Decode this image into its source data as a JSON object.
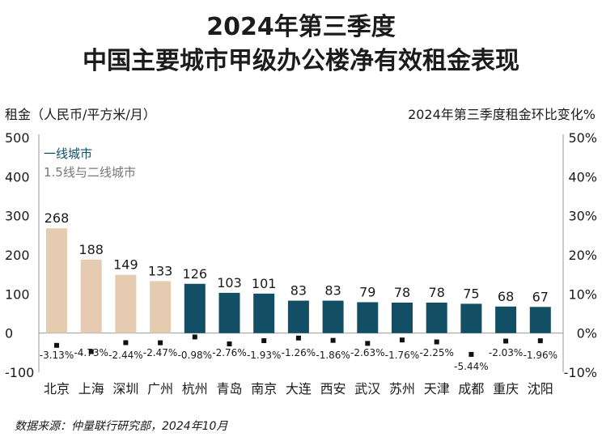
{
  "title_line1": "2024年第三季度",
  "title_line2": "中国主要城市甲级办公楼净有效租金表现",
  "left_axis_title": "租金（人民币/平方米/月）",
  "right_axis_title": "2024年第三季度租金环比变化%",
  "source": "数据来源：仲量联行研究部，2024年10月",
  "colors": {
    "tier1": "#e5cbb0",
    "tier2": "#124f65",
    "marker": "#111111"
  },
  "chart_data": {
    "type": "bar",
    "categories": [
      "北京",
      "上海",
      "深圳",
      "广州",
      "杭州",
      "青岛",
      "南京",
      "大连",
      "西安",
      "武汉",
      "苏州",
      "天津",
      "成都",
      "重庆",
      "沈阳"
    ],
    "series": [
      {
        "name": "一线城市",
        "axis": "left",
        "values": [
          268,
          188,
          149,
          133,
          null,
          null,
          null,
          null,
          null,
          null,
          null,
          null,
          null,
          null,
          null
        ]
      },
      {
        "name": "1.5线与二线城市",
        "axis": "left",
        "values": [
          null,
          null,
          null,
          null,
          126,
          103,
          101,
          83,
          83,
          79,
          78,
          78,
          75,
          68,
          67
        ]
      },
      {
        "axis": "right",
        "type": "scatter",
        "values": [
          -3.13,
          -4.73,
          -2.44,
          -2.47,
          -0.98,
          -2.76,
          -1.93,
          -1.26,
          -1.86,
          -2.63,
          -1.76,
          -2.25,
          -5.44,
          -2.03,
          -1.96
        ]
      }
    ],
    "bar_labels": [
      "268",
      "188",
      "149",
      "133",
      "126",
      "103",
      "101",
      "83",
      "83",
      "79",
      "78",
      "78",
      "75",
      "68",
      "67"
    ],
    "change_labels": [
      "-3.13%",
      "-4.73%",
      "-2.44%",
      "-2.47%",
      "-0.98%",
      "-2.76%",
      "-1.93%",
      "-1.26%",
      "-1.86%",
      "-2.63%",
      "-1.76%",
      "-2.25%",
      "-5.44%",
      "-2.03%",
      "-1.96%"
    ],
    "ylim_left": [
      -100,
      500
    ],
    "yticks_left": [
      "500",
      "400",
      "300",
      "200",
      "100",
      "0",
      "-100"
    ],
    "ylim_right": [
      -10,
      50
    ],
    "yticks_right": [
      "50%",
      "40%",
      "30%",
      "20%",
      "10%",
      "0%",
      "-10%"
    ],
    "legend": [
      "一线城市",
      "1.5线与二线城市"
    ],
    "legend_position": "top-left",
    "grid": false
  }
}
